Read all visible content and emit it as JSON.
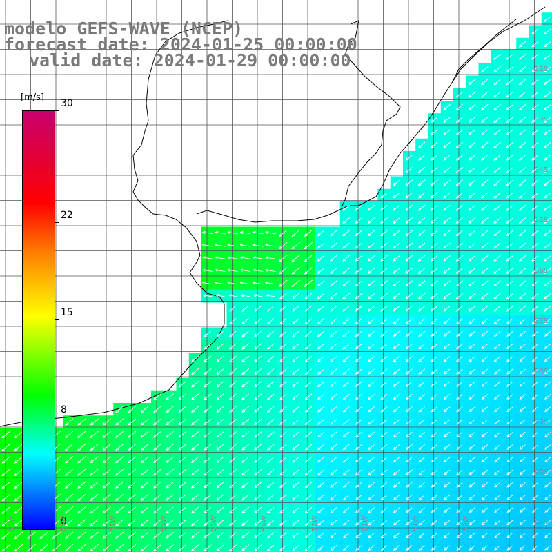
{
  "title": {
    "line1": "modelo GEFS-WAVE (NCEP)",
    "line2": "forecast date: 2024-01-25 00:00:00",
    "line3": "valid date: 2024-01-29 00:00:00"
  },
  "colorbar": {
    "unit": "[m/s]",
    "ticks": [
      {
        "label": "30",
        "value": 30
      },
      {
        "label": "22",
        "value": 22
      },
      {
        "label": "15",
        "value": 15
      },
      {
        "label": "8",
        "value": 8
      },
      {
        "label": "0",
        "value": 0
      }
    ],
    "colors": [
      "#c8006e",
      "#ff0000",
      "#ff8000",
      "#ffff00",
      "#00ff00",
      "#00ffff",
      "#0080ff",
      "#0000ff"
    ]
  },
  "lat_labels": [
    "32S",
    "33S",
    "34S",
    "35S",
    "36S",
    "37S",
    "38S",
    "39S",
    "40S",
    "41S"
  ],
  "lon_labels": [
    "59W",
    "58W",
    "57W",
    "56W",
    "55W",
    "54W",
    "53W",
    "52W",
    "51W",
    "50W"
  ],
  "colors": {
    "grid": "#555555",
    "coast": "#000000",
    "arrow": "#ffffff",
    "title": "#7a7a7a"
  }
}
